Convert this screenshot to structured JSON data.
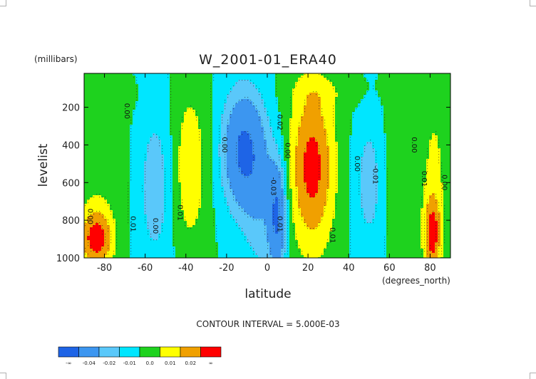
{
  "chart_data": {
    "type": "heatmap",
    "title": "W_2001-01_ERA40",
    "ylabel": "levelist",
    "yunit": "(millibars)",
    "xlabel": "latitude",
    "xunit": "(degrees_north)",
    "xlim": [
      -90,
      90
    ],
    "ylim": [
      1000,
      20
    ],
    "yaxis_inverted": true,
    "xticks": [
      -80,
      -60,
      -40,
      -20,
      0,
      20,
      40,
      60,
      80
    ],
    "yticks": [
      200,
      400,
      600,
      800,
      1000
    ],
    "contour_interval_text": "CONTOUR INTERVAL = 5.000E-03",
    "colorbar": {
      "colors": [
        "#1e64e6",
        "#3c96f0",
        "#5ac8fa",
        "#00e6ff",
        "#1ed21e",
        "#ffff00",
        "#f0a000",
        "#ff0000"
      ],
      "tick_labels": [
        "-∞",
        "-0.04",
        "-0.02",
        "-0.01",
        "0.0",
        "0.01",
        "0.02",
        "∞"
      ]
    },
    "contour_labels": [
      {
        "text": "0.00",
        "lat": -70,
        "p": 220
      },
      {
        "text": "0.00",
        "lat": -22,
        "p": 400
      },
      {
        "text": "0.02",
        "lat": 5,
        "p": 280
      },
      {
        "text": "0.00",
        "lat": 9,
        "p": 430
      },
      {
        "text": "-0.03",
        "lat": 2,
        "p": 620
      },
      {
        "text": "0.01",
        "lat": -44,
        "p": 760
      },
      {
        "text": "0.00",
        "lat": -56,
        "p": 830
      },
      {
        "text": "0.01",
        "lat": -67,
        "p": 820
      },
      {
        "text": "0.00",
        "lat": -88,
        "p": 780
      },
      {
        "text": "0.00",
        "lat": 43,
        "p": 500
      },
      {
        "text": "-0.01",
        "lat": 52,
        "p": 560
      },
      {
        "text": "0.00",
        "lat": 71,
        "p": 400
      },
      {
        "text": "0.01",
        "lat": 76,
        "p": 580
      },
      {
        "text": "0.00",
        "lat": 86,
        "p": 600
      },
      {
        "text": "0.01",
        "lat": 31,
        "p": 880
      },
      {
        "text": "0.01",
        "lat": 5,
        "p": 820
      }
    ],
    "field_features": [
      {
        "lat": -84,
        "p": 900,
        "sigma_lat": 6,
        "sigma_p": 110,
        "amp": 0.035
      },
      {
        "lat": -83,
        "p": 500,
        "sigma_lat": 9,
        "sigma_p": 250,
        "amp": 0.008
      },
      {
        "lat": -55,
        "p": 620,
        "sigma_lat": 6,
        "sigma_p": 300,
        "amp": -0.016
      },
      {
        "lat": -38,
        "p": 520,
        "sigma_lat": 6,
        "sigma_p": 300,
        "amp": 0.018
      },
      {
        "lat": -12,
        "p": 430,
        "sigma_lat": 7,
        "sigma_p": 220,
        "amp": -0.042
      },
      {
        "lat": 5,
        "p": 780,
        "sigma_lat": 3,
        "sigma_p": 200,
        "amp": -0.04
      },
      {
        "lat": -3,
        "p": 700,
        "sigma_lat": 6,
        "sigma_p": 300,
        "amp": -0.015
      },
      {
        "lat": 22,
        "p": 520,
        "sigma_lat": 8,
        "sigma_p": 320,
        "amp": 0.034
      },
      {
        "lat": 50,
        "p": 600,
        "sigma_lat": 5,
        "sigma_p": 250,
        "amp": -0.015
      },
      {
        "lat": 65,
        "p": 500,
        "sigma_lat": 5,
        "sigma_p": 350,
        "amp": 0.008
      },
      {
        "lat": 81,
        "p": 880,
        "sigma_lat": 3,
        "sigma_p": 140,
        "amp": 0.03
      },
      {
        "lat": 82,
        "p": 550,
        "sigma_lat": 5,
        "sigma_p": 350,
        "amp": 0.012
      },
      {
        "lat": -78,
        "p": 140,
        "sigma_lat": 8,
        "sigma_p": 60,
        "amp": 0.006
      },
      {
        "lat": 30,
        "p": 120,
        "sigma_lat": 15,
        "sigma_p": 60,
        "amp": 0.005
      }
    ]
  }
}
